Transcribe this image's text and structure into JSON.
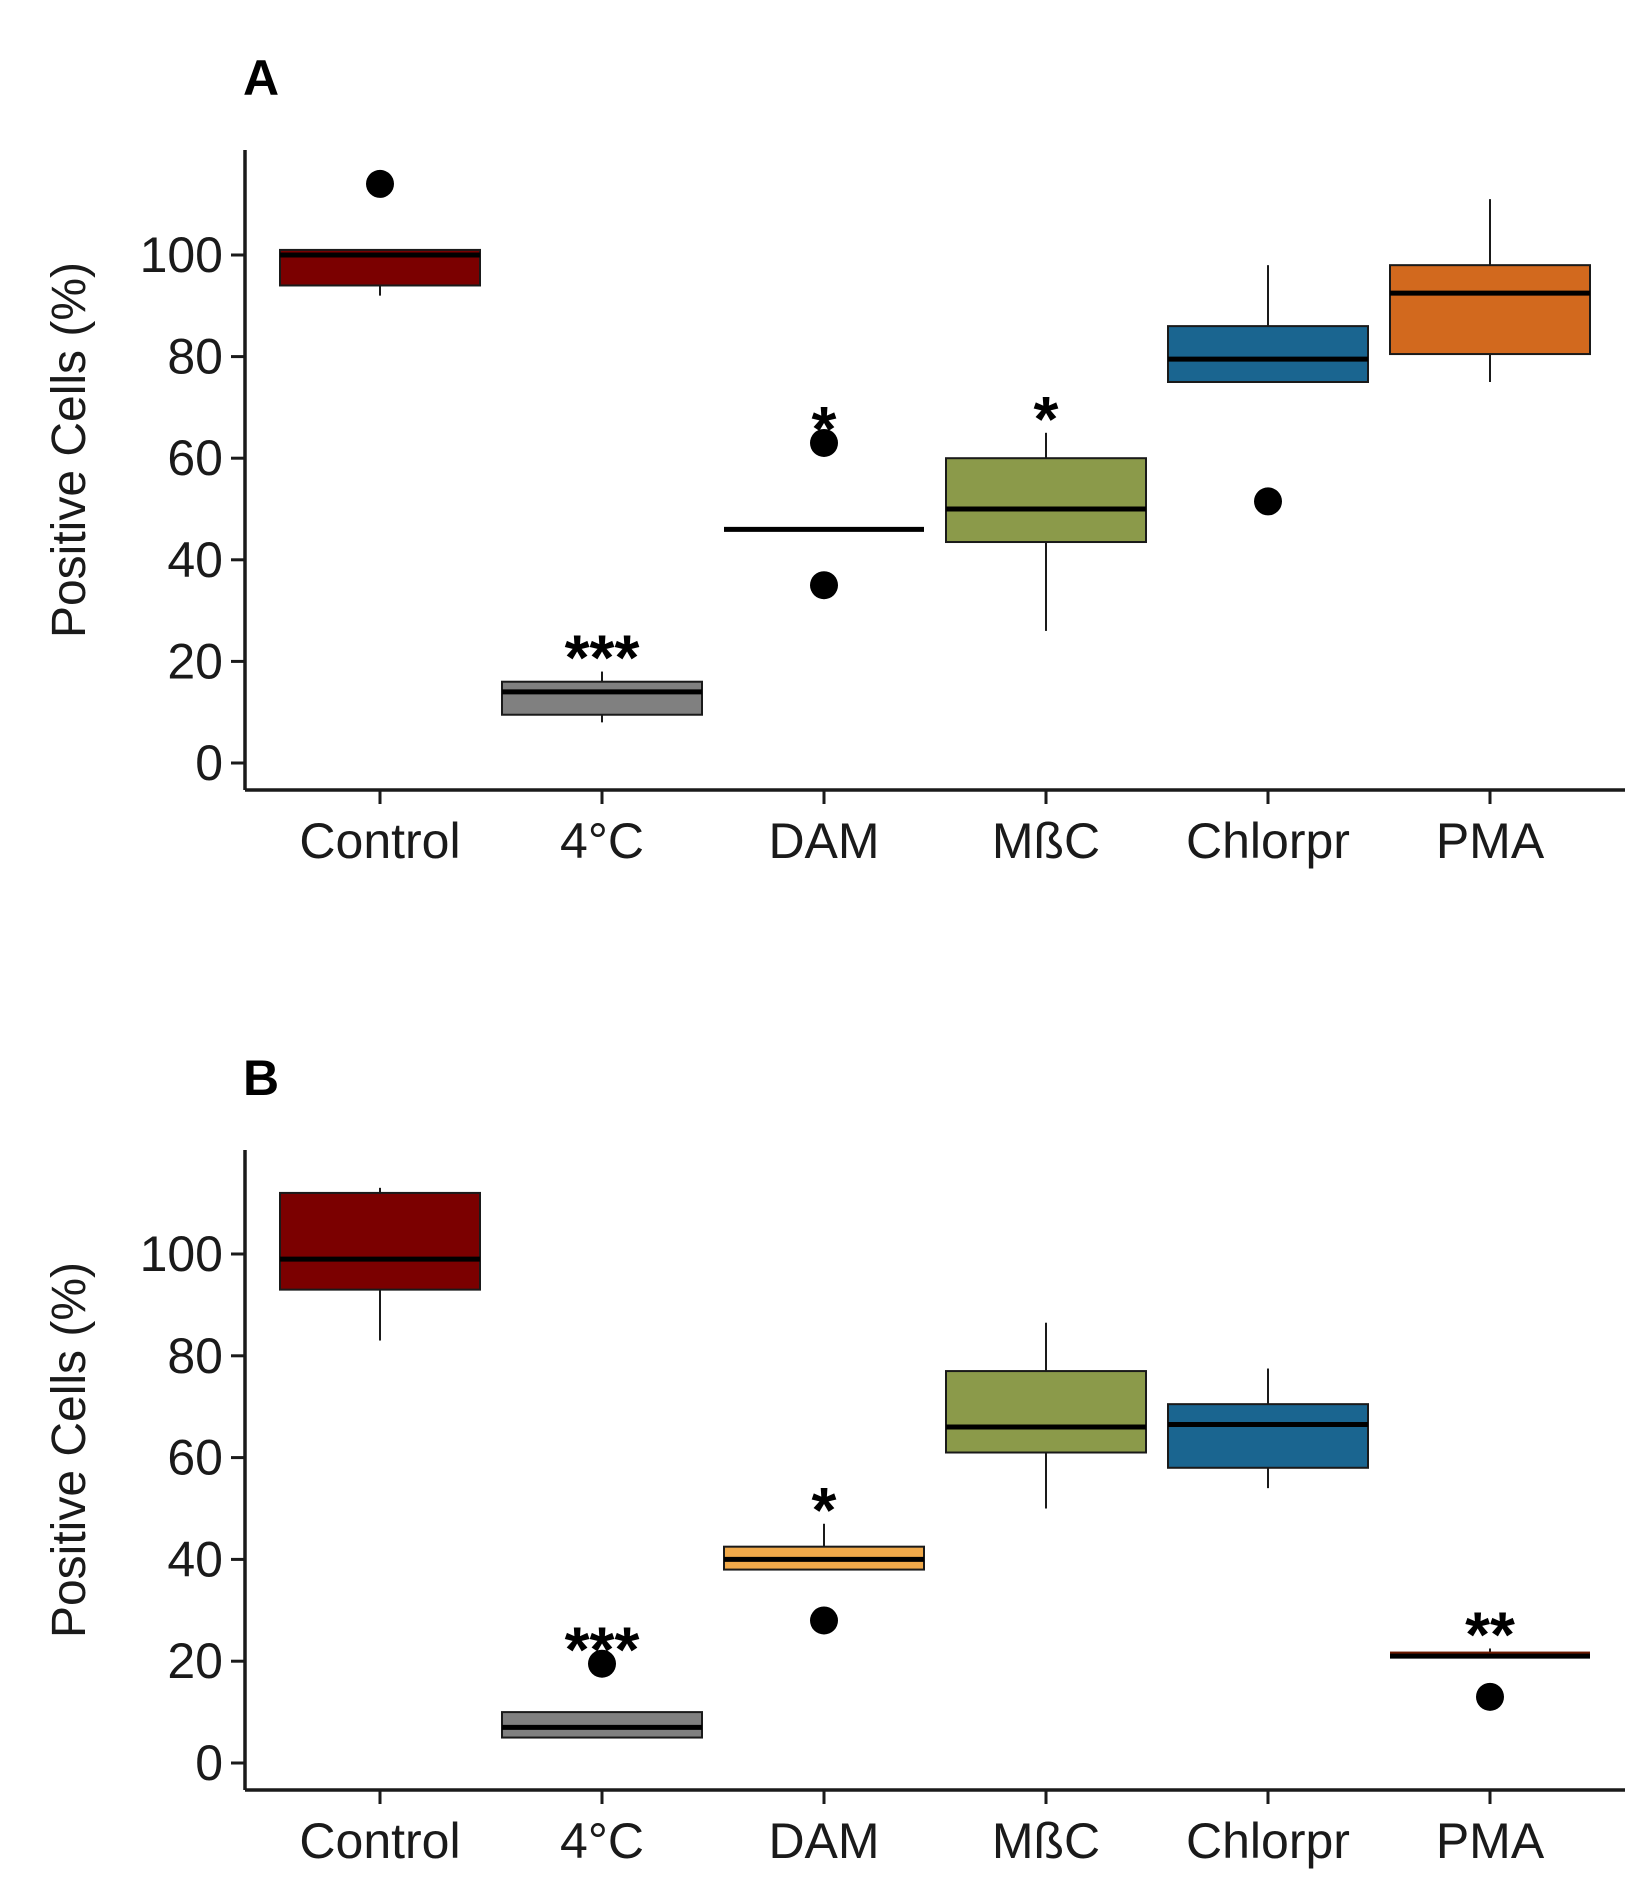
{
  "chart_data": [
    {
      "type": "box",
      "panel": "A",
      "title": "",
      "xlabel": "",
      "ylabel": "Positive Cells (%)",
      "ylim": [
        -6,
        120
      ],
      "yticks": [
        0,
        20,
        40,
        60,
        80,
        100
      ],
      "categories": [
        "Control",
        "4°C",
        "DAM",
        "MßC",
        "Chlorpr",
        "PMA"
      ],
      "boxes": [
        {
          "category": "Control",
          "color": "#7b0000",
          "whisker_low": 92,
          "q1": 94,
          "median": 100,
          "q3": 101,
          "whisker_high": 101,
          "outliers": [
            114
          ],
          "significance": ""
        },
        {
          "category": "4°C",
          "color": "#808080",
          "whisker_low": 8,
          "q1": 9.5,
          "median": 14,
          "q3": 16,
          "whisker_high": 18,
          "outliers": [],
          "significance": "***"
        },
        {
          "category": "DAM",
          "color": "#000000",
          "whisker_low": 46,
          "q1": 46,
          "median": 46,
          "q3": 46,
          "whisker_high": 46,
          "outliers": [
            63,
            35
          ],
          "significance": "*"
        },
        {
          "category": "MßC",
          "color": "#8b9a4a",
          "whisker_low": 26,
          "q1": 43.5,
          "median": 50,
          "q3": 60,
          "whisker_high": 65,
          "outliers": [],
          "significance": "*"
        },
        {
          "category": "Chlorpr",
          "color": "#1a6590",
          "whisker_low": 75,
          "q1": 75,
          "median": 79.5,
          "q3": 86,
          "whisker_high": 98,
          "outliers": [
            51.5
          ],
          "significance": ""
        },
        {
          "category": "PMA",
          "color": "#d2691e",
          "whisker_low": 75,
          "q1": 80.5,
          "median": 92.5,
          "q3": 98,
          "whisker_high": 111,
          "outliers": [],
          "significance": ""
        }
      ]
    },
    {
      "type": "box",
      "panel": "B",
      "title": "",
      "xlabel": "",
      "ylabel": "Positive Cells (%)",
      "ylim": [
        -6,
        120
      ],
      "yticks": [
        0,
        20,
        40,
        60,
        80,
        100
      ],
      "categories": [
        "Control",
        "4°C",
        "DAM",
        "MßC",
        "Chlorpr",
        "PMA"
      ],
      "boxes": [
        {
          "category": "Control",
          "color": "#7b0000",
          "whisker_low": 83,
          "q1": 93,
          "median": 99,
          "q3": 112,
          "whisker_high": 113,
          "outliers": [],
          "significance": ""
        },
        {
          "category": "4°C",
          "color": "#808080",
          "whisker_low": 5,
          "q1": 5,
          "median": 7,
          "q3": 10,
          "whisker_high": 10,
          "outliers": [
            19.5
          ],
          "significance": "***"
        },
        {
          "category": "DAM",
          "color": "#f0a94a",
          "whisker_low": 38,
          "q1": 38,
          "median": 40,
          "q3": 42.5,
          "whisker_high": 47,
          "outliers": [
            28
          ],
          "significance": "*"
        },
        {
          "category": "MßC",
          "color": "#8b9a4a",
          "whisker_low": 50,
          "q1": 61,
          "median": 66,
          "q3": 77,
          "whisker_high": 86.5,
          "outliers": [],
          "significance": ""
        },
        {
          "category": "Chlorpr",
          "color": "#1a6590",
          "whisker_low": 54,
          "q1": 58,
          "median": 66.5,
          "q3": 70.5,
          "whisker_high": 77.5,
          "outliers": [],
          "significance": ""
        },
        {
          "category": "PMA",
          "color": "#6b1a00",
          "whisker_low": 21,
          "q1": 21,
          "median": 21,
          "q3": 21.5,
          "whisker_high": 22.5,
          "outliers": [
            13
          ],
          "significance": "**"
        }
      ]
    }
  ]
}
